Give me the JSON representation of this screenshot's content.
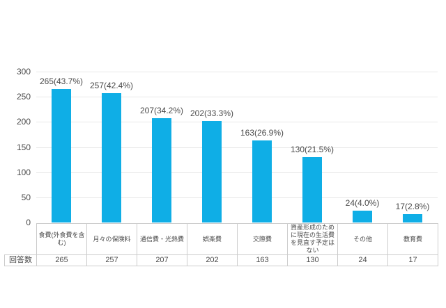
{
  "chart_data": {
    "type": "bar",
    "title": "",
    "categories": [
      "食費(外食費を含む)",
      "月々の保険料",
      "通信費・光熱費",
      "娯楽費",
      "交際費",
      "資産形成のために現在の生活費を見直す予定はない",
      "その他",
      "教育費"
    ],
    "values": [
      265,
      257,
      207,
      202,
      163,
      130,
      24,
      17
    ],
    "percentages": [
      "43.7",
      "42.4",
      "34.2",
      "33.3",
      "26.9",
      "21.5",
      "4.0",
      "2.8"
    ],
    "bar_labels": [
      "265(43.7%)",
      "257(42.4%)",
      "207(34.2%)",
      "202(33.3%)",
      "163(26.9%)",
      "130(21.5%)",
      "24(4.0%)",
      "17(2.8%)"
    ],
    "xlabel": "",
    "ylabel": "",
    "ylim": [
      0,
      300
    ],
    "yticks": [
      0,
      50,
      100,
      150,
      200,
      250,
      300
    ],
    "grid": true,
    "legend": false
  },
  "table": {
    "row_header": "回答数",
    "values": [
      "265",
      "257",
      "207",
      "202",
      "163",
      "130",
      "24",
      "17"
    ]
  },
  "colors": {
    "bar": "#0FAEE6",
    "grid": "#e7e7e7",
    "text": "#4a4a4a",
    "table_border": "#cccccc",
    "background": "#ffffff"
  }
}
